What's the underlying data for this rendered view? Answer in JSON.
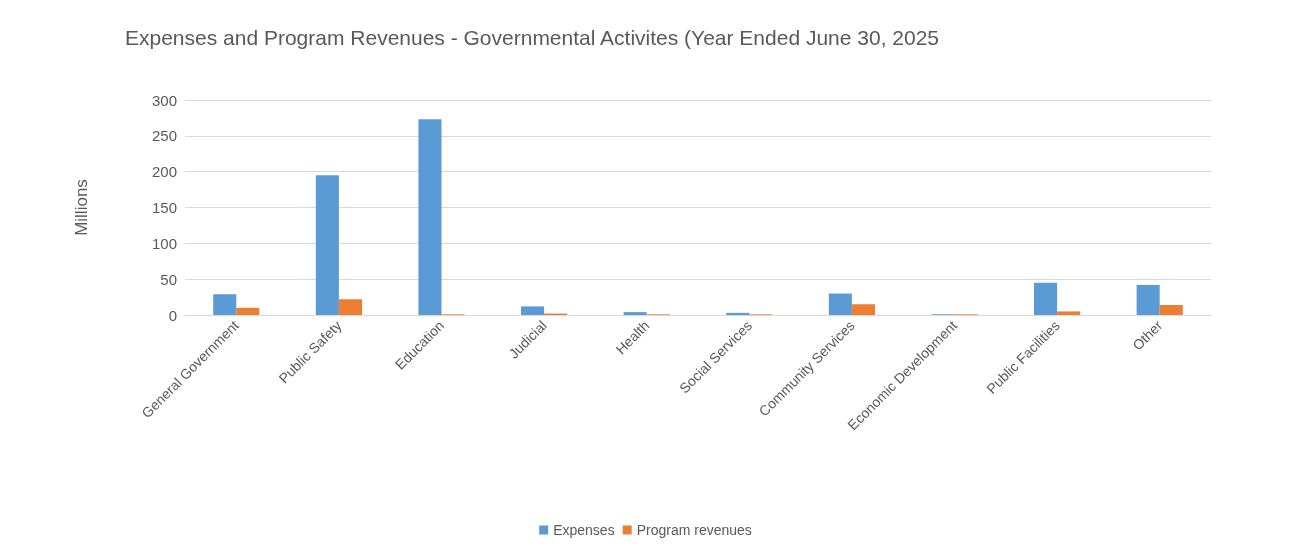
{
  "chart_data": {
    "type": "bar",
    "title": "Expenses and Program Revenues - Governmental Activites (Year Ended June 30, 2025",
    "ylabel": "Millions",
    "categories": [
      "General Government",
      "Public Safety",
      "Education",
      "Judicial",
      "Health",
      "Social Services",
      "Community Services",
      "Economic Development",
      "Public Facilities",
      "Other"
    ],
    "series": [
      {
        "name": "Expenses",
        "color": "#5b9bd5",
        "values": [
          29,
          195,
          273,
          12,
          4,
          3,
          30,
          1,
          45,
          42
        ]
      },
      {
        "name": "Program revenues",
        "color": "#ed7d31",
        "values": [
          10,
          22,
          1,
          2,
          1,
          1,
          15,
          1,
          5,
          14
        ]
      }
    ],
    "ylim": [
      0,
      300
    ],
    "yticks": [
      0,
      50,
      100,
      150,
      200,
      250,
      300
    ],
    "grid": "y",
    "legend": "bottom"
  }
}
